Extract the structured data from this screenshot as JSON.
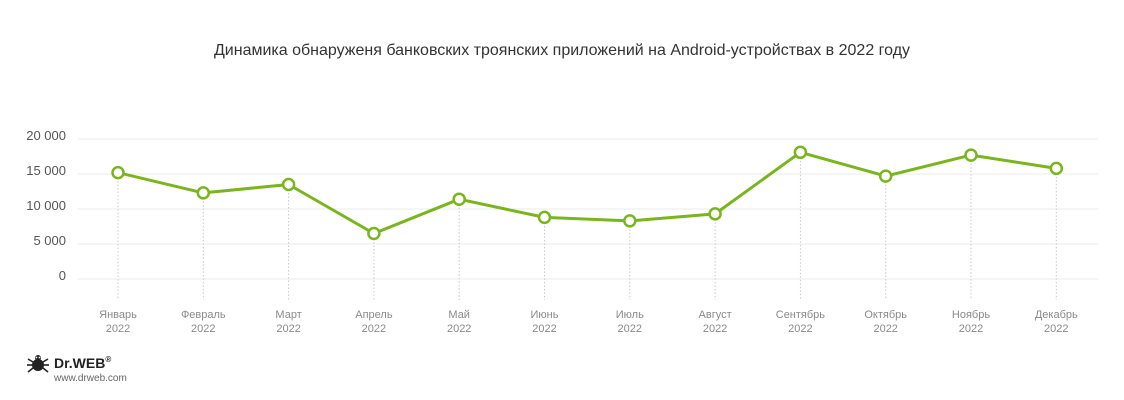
{
  "chart_data": {
    "type": "line",
    "title": "Динамика обнаруженя банковских троянских приложений на Android-устройствах в 2022 году",
    "categories": [
      [
        "Январь",
        "2022"
      ],
      [
        "Февраль",
        "2022"
      ],
      [
        "Март",
        "2022"
      ],
      [
        "Апрель",
        "2022"
      ],
      [
        "Май",
        "2022"
      ],
      [
        "Июнь",
        "2022"
      ],
      [
        "Июль",
        "2022"
      ],
      [
        "Август",
        "2022"
      ],
      [
        "Сентябрь",
        "2022"
      ],
      [
        "Октябрь",
        "2022"
      ],
      [
        "Ноябрь",
        "2022"
      ],
      [
        "Декабрь",
        "2022"
      ]
    ],
    "series": [
      {
        "values": [
          15200,
          12300,
          13500,
          6500,
          11400,
          8800,
          8300,
          9300,
          18100,
          14700,
          17700,
          15800
        ]
      }
    ],
    "ytick_values": [
      0,
      5000,
      10000,
      15000,
      20000
    ],
    "ytick_labels": [
      "0",
      "5 000",
      "10 000",
      "15 000",
      "20 000"
    ],
    "ylim": [
      0,
      20000
    ],
    "grid": true,
    "line_color": "#7ab51d",
    "grid_color": "#e8ecee"
  },
  "brand": {
    "name": "Dr.WEB",
    "reg": "®",
    "url": "www.drweb.com"
  }
}
